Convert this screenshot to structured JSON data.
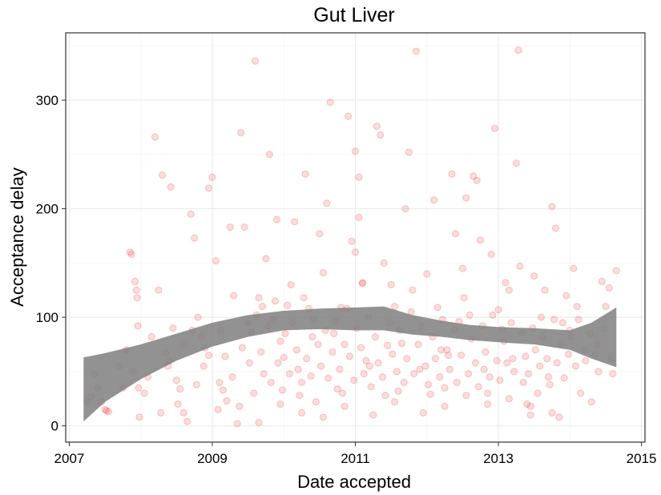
{
  "chart_data": {
    "type": "scatter",
    "title": "Gut Liver",
    "xlabel": "Date accepted",
    "ylabel": "Acceptance delay",
    "xlim": [
      2006.95,
      2015.05
    ],
    "ylim": [
      -15,
      362
    ],
    "x_ticks": [
      2007,
      2009,
      2011,
      2013,
      2015
    ],
    "x_tick_labels": [
      "2007",
      "2009",
      "2011",
      "2013",
      "2015"
    ],
    "y_ticks": [
      0,
      100,
      200,
      300
    ],
    "y_tick_labels": [
      "0",
      "100",
      "200",
      "300"
    ],
    "grid": true,
    "legend": "none",
    "point_color": "#ee3b3b",
    "band_color": "#7f7f7f",
    "smooth_band": {
      "x": [
        2007.2,
        2007.5,
        2008.0,
        2008.5,
        2009.0,
        2009.5,
        2010.0,
        2010.5,
        2011.0,
        2011.4,
        2011.8,
        2012.2,
        2012.6,
        2013.0,
        2013.5,
        2014.0,
        2014.3,
        2014.65
      ],
      "upper": [
        63,
        67,
        75,
        85,
        95,
        102,
        106,
        108,
        109,
        110,
        102,
        97,
        93,
        91,
        90,
        88,
        95,
        109
      ],
      "lower": [
        4,
        22,
        43,
        60,
        73,
        82,
        88,
        89,
        88,
        88,
        84,
        82,
        79,
        77,
        75,
        70,
        62,
        54
      ]
    },
    "points": [
      [
        2007.25,
        22
      ],
      [
        2007.3,
        27
      ],
      [
        2007.35,
        48
      ],
      [
        2007.4,
        35
      ],
      [
        2007.45,
        22
      ],
      [
        2007.5,
        15
      ],
      [
        2007.52,
        14
      ],
      [
        2007.55,
        13
      ],
      [
        2007.85,
        160
      ],
      [
        2007.87,
        158
      ],
      [
        2007.9,
        50
      ],
      [
        2007.92,
        133
      ],
      [
        2007.94,
        125
      ],
      [
        2007.95,
        118
      ],
      [
        2007.96,
        92
      ],
      [
        2007.97,
        35
      ],
      [
        2007.98,
        8
      ],
      [
        2008.2,
        266
      ],
      [
        2008.25,
        125
      ],
      [
        2008.3,
        231
      ],
      [
        2008.35,
        67
      ],
      [
        2008.38,
        55
      ],
      [
        2008.42,
        220
      ],
      [
        2008.45,
        90
      ],
      [
        2008.5,
        42
      ],
      [
        2008.55,
        34
      ],
      [
        2008.6,
        12
      ],
      [
        2008.65,
        4
      ],
      [
        2008.7,
        195
      ],
      [
        2008.75,
        173
      ],
      [
        2008.8,
        100
      ],
      [
        2008.85,
        83
      ],
      [
        2008.9,
        72
      ],
      [
        2008.95,
        65
      ],
      [
        2008.95,
        219
      ],
      [
        2009.0,
        229
      ],
      [
        2009.05,
        152
      ],
      [
        2009.1,
        40
      ],
      [
        2009.15,
        33
      ],
      [
        2009.2,
        23
      ],
      [
        2009.25,
        183
      ],
      [
        2009.3,
        120
      ],
      [
        2009.35,
        2
      ],
      [
        2009.4,
        270
      ],
      [
        2009.45,
        183
      ],
      [
        2009.5,
        95
      ],
      [
        2009.55,
        86
      ],
      [
        2009.6,
        336
      ],
      [
        2009.65,
        118
      ],
      [
        2009.7,
        110
      ],
      [
        2009.75,
        154
      ],
      [
        2009.8,
        250
      ],
      [
        2009.85,
        98
      ],
      [
        2009.9,
        190
      ],
      [
        2009.95,
        78
      ],
      [
        2010.0,
        63
      ],
      [
        2010.05,
        111
      ],
      [
        2010.1,
        130
      ],
      [
        2010.15,
        188
      ],
      [
        2010.2,
        52
      ],
      [
        2010.25,
        40
      ],
      [
        2010.3,
        232
      ],
      [
        2010.35,
        108
      ],
      [
        2010.4,
        82
      ],
      [
        2010.45,
        22
      ],
      [
        2010.5,
        177
      ],
      [
        2010.55,
        141
      ],
      [
        2010.6,
        205
      ],
      [
        2010.65,
        298
      ],
      [
        2010.7,
        85
      ],
      [
        2010.75,
        34
      ],
      [
        2010.8,
        109
      ],
      [
        2010.85,
        75
      ],
      [
        2010.9,
        285
      ],
      [
        2010.95,
        170
      ],
      [
        2011.0,
        253
      ],
      [
        2011.0,
        160
      ],
      [
        2011.05,
        229
      ],
      [
        2011.05,
        192
      ],
      [
        2011.1,
        132
      ],
      [
        2011.1,
        131
      ],
      [
        2011.15,
        60
      ],
      [
        2011.2,
        55
      ],
      [
        2011.3,
        276
      ],
      [
        2011.35,
        268
      ],
      [
        2011.4,
        150
      ],
      [
        2011.45,
        74
      ],
      [
        2011.5,
        130
      ],
      [
        2011.55,
        110
      ],
      [
        2011.6,
        32
      ],
      [
        2011.65,
        76
      ],
      [
        2011.7,
        200
      ],
      [
        2011.75,
        252
      ],
      [
        2011.8,
        125
      ],
      [
        2011.85,
        345
      ],
      [
        2011.9,
        52
      ],
      [
        2012.0,
        140
      ],
      [
        2012.05,
        29
      ],
      [
        2012.1,
        208
      ],
      [
        2012.15,
        109
      ],
      [
        2012.2,
        70
      ],
      [
        2012.25,
        35
      ],
      [
        2012.3,
        65
      ],
      [
        2012.35,
        232
      ],
      [
        2012.4,
        177
      ],
      [
        2012.45,
        96
      ],
      [
        2012.5,
        145
      ],
      [
        2012.55,
        210
      ],
      [
        2012.6,
        102
      ],
      [
        2012.65,
        230
      ],
      [
        2012.7,
        226
      ],
      [
        2012.75,
        171
      ],
      [
        2012.8,
        52
      ],
      [
        2012.85,
        30
      ],
      [
        2012.9,
        158
      ],
      [
        2012.95,
        274
      ],
      [
        2013.0,
        107
      ],
      [
        2013.05,
        89
      ],
      [
        2013.1,
        132
      ],
      [
        2013.15,
        125
      ],
      [
        2013.2,
        62
      ],
      [
        2013.25,
        242
      ],
      [
        2013.28,
        346
      ],
      [
        2013.3,
        147
      ],
      [
        2013.35,
        40
      ],
      [
        2013.4,
        20
      ],
      [
        2013.45,
        10
      ],
      [
        2013.5,
        138
      ],
      [
        2013.55,
        30
      ],
      [
        2013.6,
        100
      ],
      [
        2013.65,
        125
      ],
      [
        2013.7,
        45
      ],
      [
        2013.75,
        202
      ],
      [
        2013.8,
        182
      ],
      [
        2013.85,
        8
      ],
      [
        2013.9,
        95
      ],
      [
        2013.95,
        120
      ],
      [
        2014.0,
        88
      ],
      [
        2014.05,
        145
      ],
      [
        2014.1,
        110
      ],
      [
        2014.15,
        30
      ],
      [
        2014.2,
        70
      ],
      [
        2014.3,
        22
      ],
      [
        2014.35,
        65
      ],
      [
        2014.4,
        50
      ],
      [
        2014.45,
        133
      ],
      [
        2014.5,
        110
      ],
      [
        2014.55,
        127
      ],
      [
        2014.6,
        48
      ],
      [
        2014.65,
        143
      ],
      [
        2007.7,
        55
      ],
      [
        2007.75,
        35
      ],
      [
        2007.8,
        70
      ],
      [
        2008.1,
        45
      ],
      [
        2008.15,
        82
      ],
      [
        2008.4,
        60
      ],
      [
        2008.6,
        75
      ],
      [
        2008.78,
        38
      ],
      [
        2008.88,
        55
      ],
      [
        2009.12,
        88
      ],
      [
        2009.18,
        64
      ],
      [
        2009.28,
        45
      ],
      [
        2009.42,
        72
      ],
      [
        2009.52,
        58
      ],
      [
        2009.58,
        30
      ],
      [
        2009.62,
        102
      ],
      [
        2009.68,
        68
      ],
      [
        2009.72,
        48
      ],
      [
        2009.78,
        92
      ],
      [
        2009.82,
        40
      ],
      [
        2009.88,
        115
      ],
      [
        2009.92,
        58
      ],
      [
        2009.98,
        33
      ],
      [
        2010.02,
        85
      ],
      [
        2010.08,
        48
      ],
      [
        2010.12,
        95
      ],
      [
        2010.18,
        70
      ],
      [
        2010.22,
        28
      ],
      [
        2010.28,
        118
      ],
      [
        2010.32,
        62
      ],
      [
        2010.38,
        46
      ],
      [
        2010.42,
        98
      ],
      [
        2010.48,
        75
      ],
      [
        2010.52,
        55
      ],
      [
        2010.58,
        88
      ],
      [
        2010.62,
        44
      ],
      [
        2010.68,
        68
      ],
      [
        2010.72,
        96
      ],
      [
        2010.78,
        52
      ],
      [
        2010.82,
        30
      ],
      [
        2010.88,
        108
      ],
      [
        2010.92,
        64
      ],
      [
        2010.98,
        42
      ],
      [
        2011.02,
        90
      ],
      [
        2011.08,
        72
      ],
      [
        2011.12,
        48
      ],
      [
        2011.18,
        100
      ],
      [
        2011.22,
        36
      ],
      [
        2011.28,
        82
      ],
      [
        2011.32,
        58
      ],
      [
        2011.38,
        45
      ],
      [
        2011.42,
        28
      ],
      [
        2011.48,
        95
      ],
      [
        2011.52,
        66
      ],
      [
        2011.58,
        50
      ],
      [
        2011.62,
        88
      ],
      [
        2011.68,
        40
      ],
      [
        2011.72,
        62
      ],
      [
        2011.78,
        105
      ],
      [
        2011.82,
        48
      ],
      [
        2011.88,
        75
      ],
      [
        2011.92,
        92
      ],
      [
        2011.98,
        55
      ],
      [
        2012.02,
        38
      ],
      [
        2012.08,
        82
      ],
      [
        2012.12,
        62
      ],
      [
        2012.18,
        45
      ],
      [
        2012.22,
        98
      ],
      [
        2012.28,
        70
      ],
      [
        2012.32,
        52
      ],
      [
        2012.38,
        88
      ],
      [
        2012.42,
        40
      ],
      [
        2012.48,
        65
      ],
      [
        2012.52,
        118
      ],
      [
        2012.58,
        48
      ],
      [
        2012.62,
        80
      ],
      [
        2012.68,
        58
      ],
      [
        2012.72,
        36
      ],
      [
        2012.78,
        92
      ],
      [
        2012.82,
        68
      ],
      [
        2012.88,
        45
      ],
      [
        2012.92,
        102
      ],
      [
        2012.98,
        60
      ],
      [
        2013.02,
        42
      ],
      [
        2013.08,
        78
      ],
      [
        2013.12,
        58
      ],
      [
        2013.18,
        95
      ],
      [
        2013.22,
        50
      ],
      [
        2013.32,
        85
      ],
      [
        2013.38,
        64
      ],
      [
        2013.42,
        48
      ],
      [
        2013.48,
        90
      ],
      [
        2013.52,
        70
      ],
      [
        2013.58,
        55
      ],
      [
        2013.62,
        82
      ],
      [
        2013.68,
        62
      ],
      [
        2013.72,
        38
      ],
      [
        2013.78,
        98
      ],
      [
        2013.82,
        58
      ],
      [
        2013.88,
        75
      ],
      [
        2013.92,
        44
      ],
      [
        2013.98,
        66
      ],
      [
        2014.02,
        82
      ],
      [
        2014.08,
        55
      ],
      [
        2014.12,
        98
      ],
      [
        2014.22,
        60
      ],
      [
        2014.28,
        85
      ],
      [
        2014.38,
        75
      ],
      [
        2014.48,
        90
      ],
      [
        2014.58,
        62
      ],
      [
        2008.05,
        30
      ],
      [
        2008.28,
        12
      ],
      [
        2008.52,
        20
      ],
      [
        2008.72,
        88
      ],
      [
        2009.08,
        15
      ],
      [
        2009.38,
        18
      ],
      [
        2009.65,
        3
      ],
      [
        2009.95,
        20
      ],
      [
        2010.25,
        12
      ],
      [
        2010.55,
        8
      ],
      [
        2010.85,
        18
      ],
      [
        2011.25,
        10
      ],
      [
        2011.55,
        22
      ],
      [
        2011.95,
        12
      ],
      [
        2012.25,
        18
      ],
      [
        2012.55,
        28
      ],
      [
        2012.85,
        20
      ],
      [
        2013.15,
        25
      ],
      [
        2013.45,
        18
      ],
      [
        2013.75,
        12
      ]
    ]
  }
}
